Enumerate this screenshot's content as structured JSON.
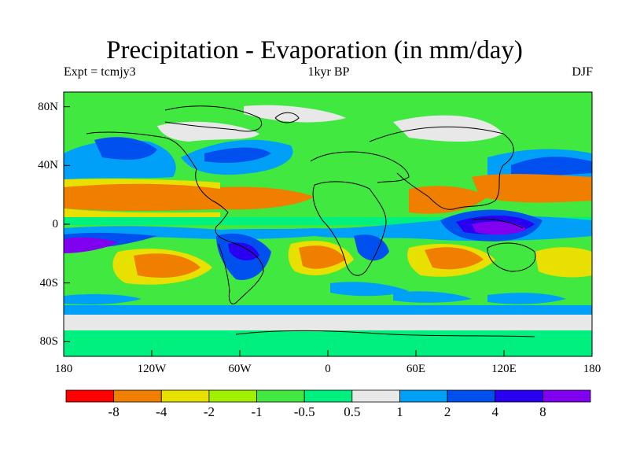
{
  "title": "Precipitation - Evaporation (in mm/day)",
  "subtitle_left": "Expt = tcmjy3",
  "subtitle_center": "1kyr BP",
  "subtitle_right": "DJF",
  "lat_ticks": [
    {
      "value": 80,
      "label": "80N"
    },
    {
      "value": 40,
      "label": "40N"
    },
    {
      "value": 0,
      "label": "0"
    },
    {
      "value": -40,
      "label": "40S"
    },
    {
      "value": -80,
      "label": "80S"
    }
  ],
  "lon_ticks": [
    {
      "value": -180,
      "label": "180"
    },
    {
      "value": -120,
      "label": "120W"
    },
    {
      "value": -60,
      "label": "60W"
    },
    {
      "value": 0,
      "label": "0"
    },
    {
      "value": 60,
      "label": "60E"
    },
    {
      "value": 120,
      "label": "120E"
    },
    {
      "value": 180,
      "label": "180"
    }
  ],
  "colorbar": {
    "colors": [
      "#ff0000",
      "#f07f00",
      "#e8e000",
      "#a0f000",
      "#40e840",
      "#00f080",
      "#e8e8e8",
      "#00a0f8",
      "#0050f0",
      "#2a00f0",
      "#8000f0"
    ],
    "labels": [
      "-8",
      "-4",
      "-2",
      "-1",
      "-0.5",
      "0.5",
      "1",
      "2",
      "4",
      "8"
    ]
  },
  "colors": {
    "background": "#40e840",
    "polar": "#e8e8e8"
  }
}
